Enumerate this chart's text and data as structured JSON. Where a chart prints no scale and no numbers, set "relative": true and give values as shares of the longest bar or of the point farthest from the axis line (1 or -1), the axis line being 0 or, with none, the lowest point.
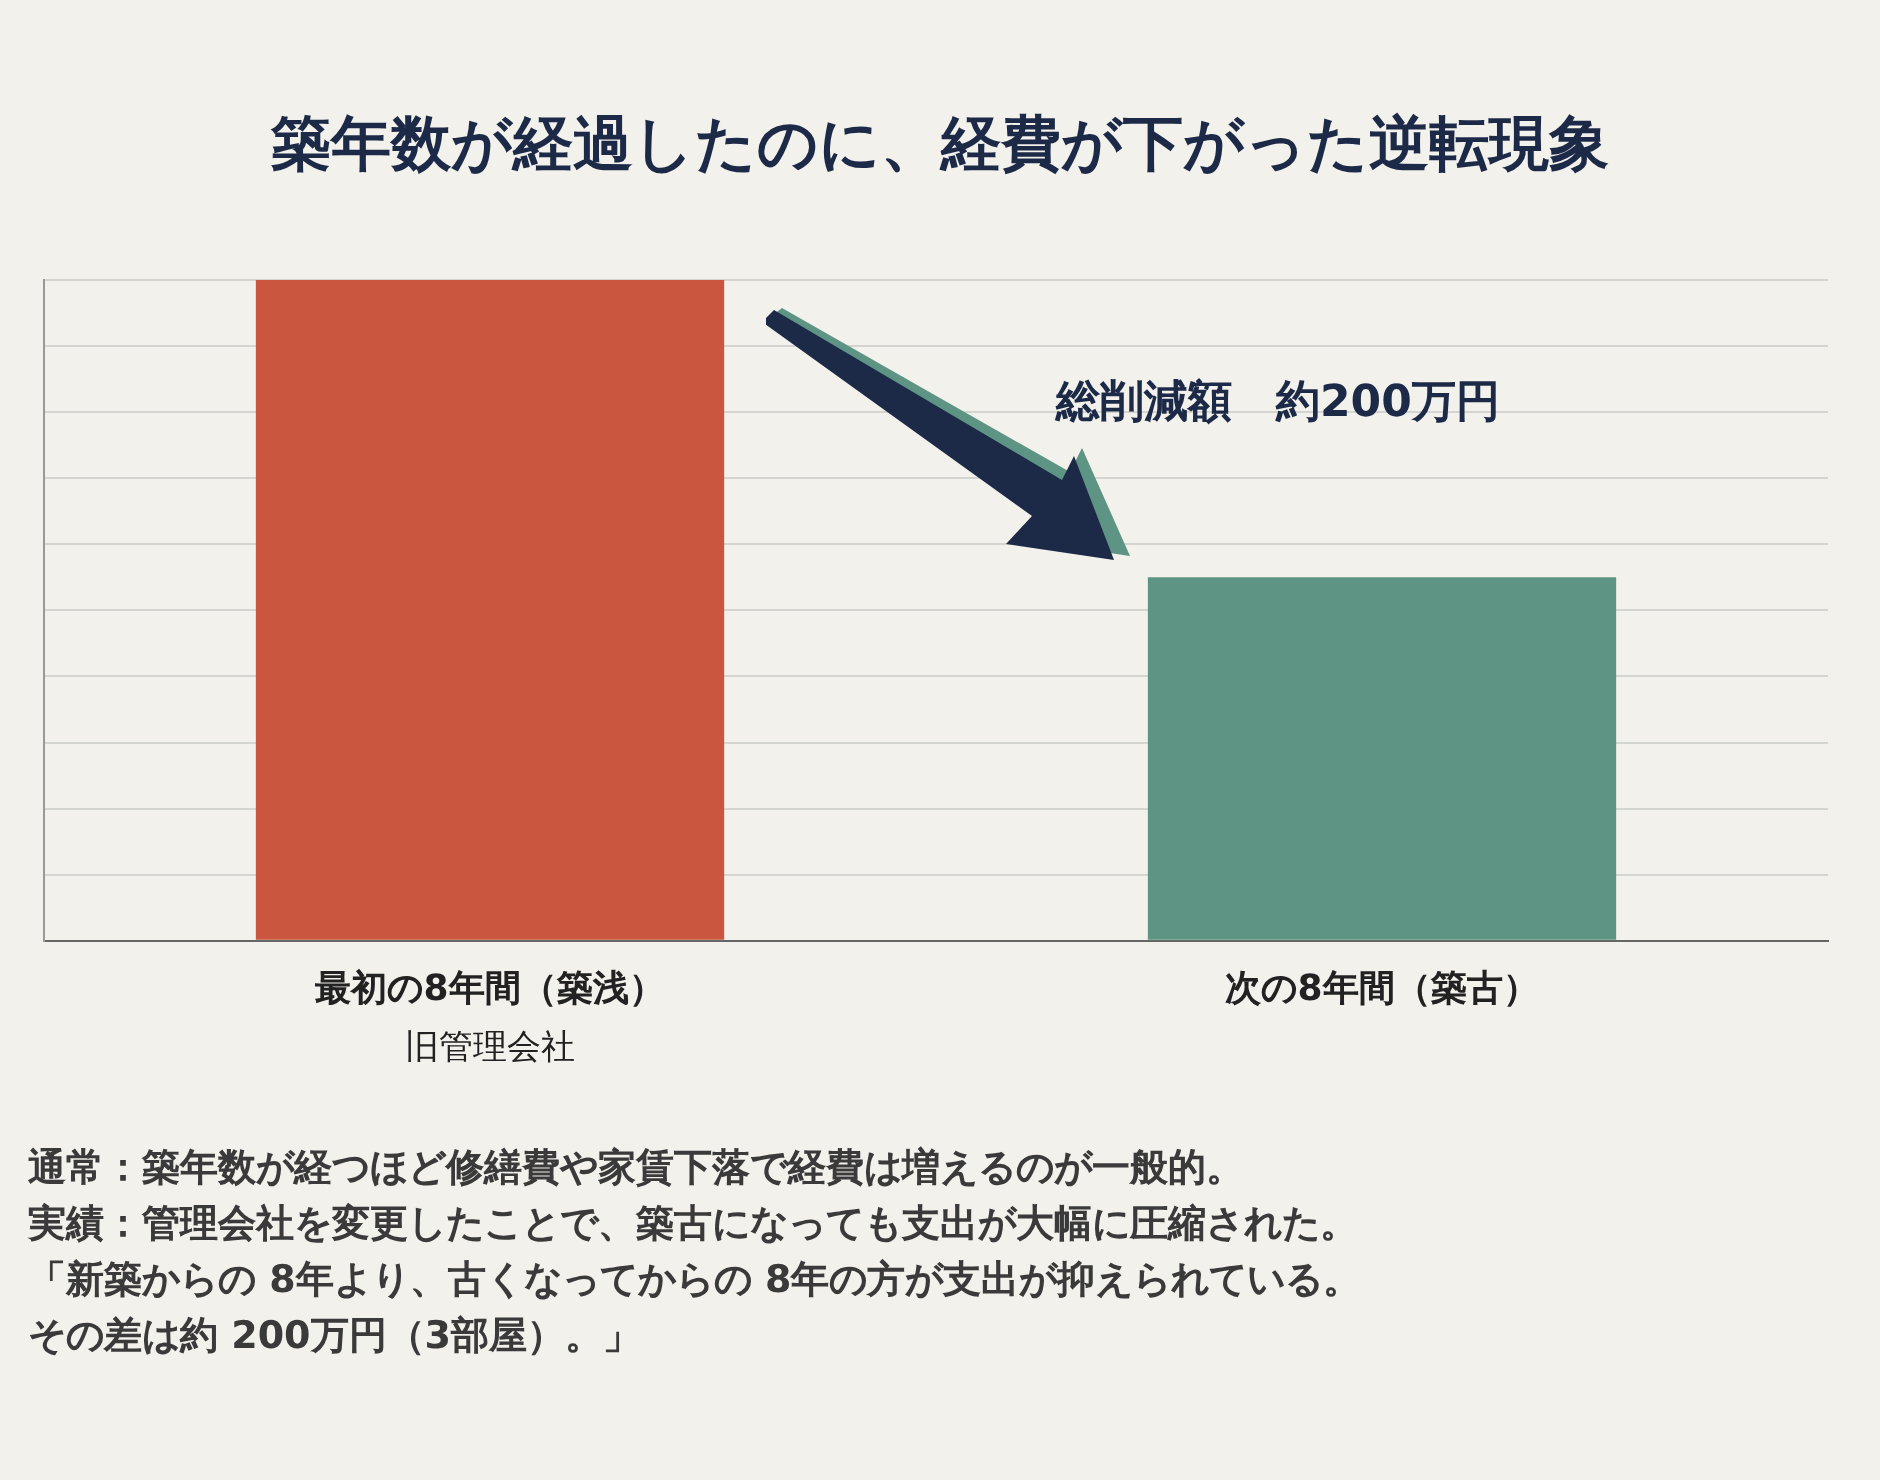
{
  "chart_data": {
    "type": "bar",
    "title": "築年数が経過したのに、経費が下がった逆転現象",
    "categories": [
      "最初の8年間（築浅）",
      "次の8年間（築古）"
    ],
    "values": [
      1,
      0.55
    ],
    "colors": [
      "#cb5640",
      "#5e9483"
    ],
    "relative": true,
    "grid": "y",
    "legend": false,
    "annotations": [
      "旧管理会社",
      "総削減額　約200万円",
      "通常：築年数が経つほど修繕費や家賃下落で経費は増えるのが一般的。",
      "実績：管理会社を変更したことで、築古になっても支出が大幅に圧縮された。",
      "「新築からの 8年より、古くなってからの  8年の方が支出が抑えられている。",
      "その差は約  200万円（3部屋）。」"
    ]
  }
}
